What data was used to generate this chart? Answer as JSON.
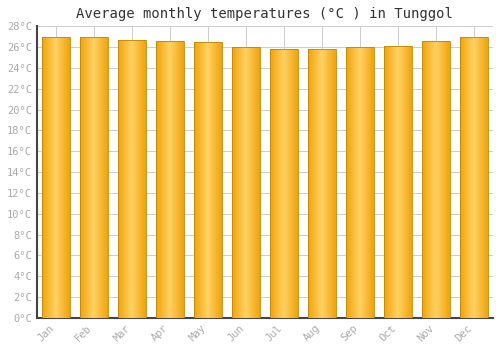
{
  "title": "Average monthly temperatures (°C ) in Tunggol",
  "months": [
    "Jan",
    "Feb",
    "Mar",
    "Apr",
    "May",
    "Jun",
    "Jul",
    "Aug",
    "Sep",
    "Oct",
    "Nov",
    "Dec"
  ],
  "values": [
    27.0,
    27.0,
    26.7,
    26.6,
    26.5,
    26.0,
    25.8,
    25.8,
    26.0,
    26.1,
    26.6,
    27.0
  ],
  "bar_color_center": "#FFD060",
  "bar_color_edge": "#F5A800",
  "bar_edge_color": "#CC8800",
  "ylim": [
    0,
    28
  ],
  "ytick_step": 2,
  "background_color": "#ffffff",
  "grid_color": "#cccccc",
  "title_fontsize": 10,
  "tick_fontsize": 7.5,
  "tick_color": "#aaaaaa",
  "bar_width": 0.75
}
